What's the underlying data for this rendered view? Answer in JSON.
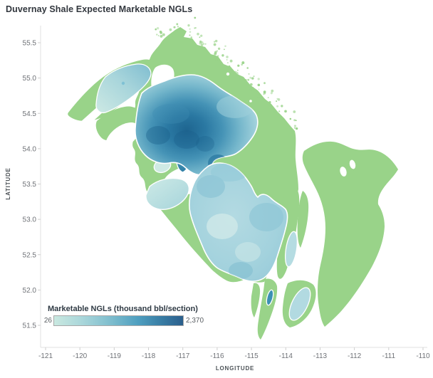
{
  "title": "Duvernay Shale Expected Marketable NGLs",
  "chart_data": {
    "type": "heatmap",
    "title": "Duvernay Shale Expected Marketable NGLs",
    "xlabel": "LONGITUDE",
    "ylabel": "LATITUDE",
    "x_ticks": [
      -121,
      -120,
      -119,
      -118,
      -117,
      -116,
      -115,
      -114,
      -113,
      -112,
      -111,
      -110
    ],
    "y_ticks": [
      55.5,
      55.0,
      54.5,
      54.0,
      53.5,
      53.0,
      52.5,
      52.0,
      51.5
    ],
    "xlim": [
      -121.35,
      -109.75
    ],
    "ylim": [
      51.2,
      55.73
    ],
    "grid": false,
    "legend": {
      "title": "Marketable NGLs (thousand bbl/section)",
      "position": "bottom-left",
      "min_label": "26",
      "max_label": "2,370",
      "min_value": 26,
      "max_value": 2370,
      "gradient": [
        "#c9e8e0",
        "#7cbccd",
        "#4f9fc0",
        "#2b5f8c"
      ]
    },
    "colors": {
      "base_extent_green": "#99d389",
      "low_ngl_teal": "#c9e8e0",
      "mid_ngl_blue": "#4f9fc0",
      "high_ngl_blue": "#1e6590",
      "background": "#ffffff",
      "axis_line": "#e2e2e2",
      "tick_text": "#6f7277",
      "title_text": "#32373e"
    },
    "regions": [
      {
        "name": "duvernay-shale-extent",
        "approx_value": 26,
        "note": "green base extent, low marketable NGLs"
      },
      {
        "name": "kaybob-high-ngl-core",
        "approx_center": {
          "lon": -117.3,
          "lat": 54.25
        },
        "approx_value_range": [
          1000,
          2370
        ]
      },
      {
        "name": "kaybob-halo",
        "approx_center": {
          "lon": -116.8,
          "lat": 54.4
        },
        "approx_value_range": [
          200,
          1000
        ]
      },
      {
        "name": "central-east-basin-blob",
        "approx_center": {
          "lon": -115.4,
          "lat": 53.0
        },
        "approx_value_range": [
          100,
          600
        ]
      },
      {
        "name": "northwest-arm-patch",
        "approx_center": {
          "lon": -118.7,
          "lat": 54.9
        },
        "approx_value_range": [
          80,
          400
        ]
      },
      {
        "name": "west-central-patches",
        "approx_center": {
          "lon": -117.4,
          "lat": 53.4
        },
        "approx_value_range": [
          50,
          300
        ]
      },
      {
        "name": "fox-creek-dark-sliver",
        "approx_center": {
          "lon": -117.0,
          "lat": 53.9
        },
        "approx_value_range": [
          600,
          1200
        ]
      },
      {
        "name": "east-strip-patch-north",
        "approx_center": {
          "lon": -113.8,
          "lat": 52.6
        },
        "approx_value_range": [
          80,
          250
        ]
      },
      {
        "name": "east-strip-patch-south",
        "approx_center": {
          "lon": -113.6,
          "lat": 51.8
        },
        "approx_value_range": [
          80,
          250
        ]
      },
      {
        "name": "south-dark-sliver",
        "approx_center": {
          "lon": -114.5,
          "lat": 51.9
        },
        "approx_value_range": [
          400,
          800
        ]
      }
    ]
  }
}
